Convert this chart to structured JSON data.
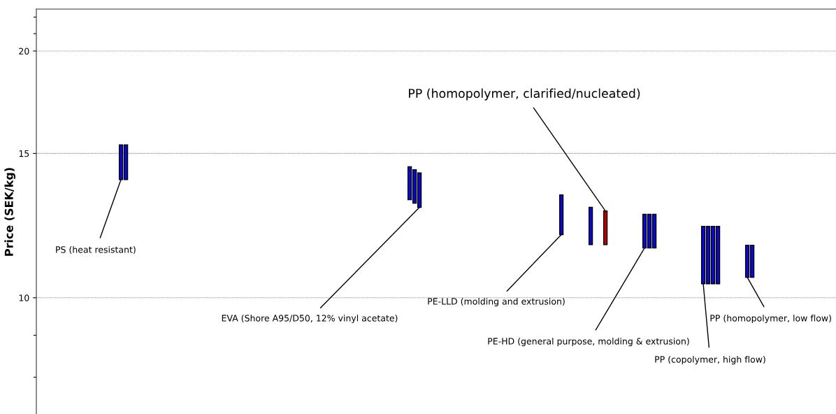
{
  "chart_data": {
    "type": "bar",
    "ylabel": "Price (SEK/kg)",
    "log": true,
    "ylim": [
      7.2,
      22.5
    ],
    "yticks": [
      {
        "value": 8,
        "label": null
      },
      {
        "value": 9,
        "label": null
      },
      10,
      15,
      20,
      {
        "value": 21,
        "label": null
      },
      {
        "value": 22,
        "label": null
      }
    ],
    "grid": "y",
    "tick_labels": "y",
    "categories": [
      null,
      null,
      null,
      null,
      null,
      null,
      null,
      null,
      null,
      null,
      null,
      null,
      null,
      null,
      null,
      null,
      null,
      null,
      null,
      null,
      null,
      null,
      null,
      null,
      null,
      null,
      null,
      null,
      null,
      null,
      null,
      null,
      null,
      null,
      null,
      null,
      null,
      null,
      null,
      null,
      null,
      null,
      null,
      null,
      null,
      null,
      null,
      null,
      null,
      null,
      null,
      null,
      null,
      null,
      null,
      null,
      null,
      null,
      null,
      null,
      null,
      null,
      null,
      null,
      null,
      null,
      null,
      null,
      null,
      null,
      null,
      null,
      null,
      null,
      null,
      null,
      null,
      null,
      null,
      null,
      null,
      null,
      null,
      null,
      null,
      null,
      null,
      null,
      null,
      null,
      null,
      null,
      null,
      null,
      null,
      null,
      null,
      null,
      null,
      null,
      null,
      null,
      null,
      null,
      null,
      null,
      null,
      null,
      null,
      null,
      null,
      null,
      null,
      null,
      null,
      null,
      null,
      null,
      null,
      null,
      null,
      null,
      null,
      null,
      null,
      null,
      null,
      null,
      null,
      null,
      null,
      null,
      null,
      null,
      null,
      null,
      null,
      null,
      null,
      null,
      null,
      null,
      null,
      null,
      null,
      null,
      null,
      null,
      null,
      null,
      null,
      null,
      null,
      null,
      null,
      null,
      null,
      null,
      null,
      null,
      null,
      null,
      null,
      null
    ],
    "series": [
      {
        "values": [
          null,
          null,
          null,
          null,
          null,
          null,
          null,
          null,
          null,
          null,
          null,
          null,
          null,
          null,
          null,
          null,
          null,
          1.42,
          1.42,
          null,
          null,
          null,
          null,
          null,
          null,
          null,
          null,
          null,
          null,
          null,
          null,
          null,
          null,
          null,
          null,
          null,
          null,
          null,
          null,
          null,
          null,
          null,
          null,
          null,
          null,
          null,
          null,
          null,
          null,
          null,
          null,
          null,
          null,
          null,
          null,
          null,
          null,
          null,
          null,
          null,
          null,
          null,
          null,
          null,
          null,
          null,
          null,
          null,
          null,
          null,
          null,
          null,
          null,
          null,
          null,
          null,
          1.28,
          1.29,
          1.31,
          null,
          null,
          null,
          null,
          null,
          null,
          null,
          null,
          null,
          null,
          null,
          null,
          null,
          null,
          null,
          null,
          null,
          null,
          null,
          null,
          null,
          null,
          null,
          null,
          null,
          null,
          null,
          null,
          1.41,
          null,
          null,
          null,
          null,
          null,
          1.28,
          null,
          null,
          1.15,
          null,
          null,
          null,
          null,
          null,
          null,
          null,
          1.14,
          1.14,
          1.14,
          null,
          null,
          null,
          null,
          null,
          null,
          null,
          null,
          null,
          1.82,
          1.82,
          1.82,
          1.82,
          null,
          null,
          null,
          null,
          null,
          1.0,
          1.0,
          null,
          null,
          null,
          null,
          null,
          null,
          null,
          null,
          null,
          null,
          null,
          null,
          null,
          null,
          null,
          null,
          null
        ],
        "base": [
          null,
          null,
          null,
          null,
          null,
          null,
          null,
          null,
          null,
          null,
          null,
          null,
          null,
          null,
          null,
          null,
          null,
          13.94,
          13.94,
          null,
          null,
          null,
          null,
          null,
          null,
          null,
          null,
          null,
          null,
          null,
          null,
          null,
          null,
          null,
          null,
          null,
          null,
          null,
          null,
          null,
          null,
          null,
          null,
          null,
          null,
          null,
          null,
          null,
          null,
          null,
          null,
          null,
          null,
          null,
          null,
          null,
          null,
          null,
          null,
          null,
          null,
          null,
          null,
          null,
          null,
          null,
          null,
          null,
          null,
          null,
          null,
          null,
          null,
          null,
          null,
          null,
          13.17,
          13.04,
          12.89,
          null,
          null,
          null,
          null,
          null,
          null,
          null,
          null,
          null,
          null,
          null,
          null,
          null,
          null,
          null,
          null,
          null,
          null,
          null,
          null,
          null,
          null,
          null,
          null,
          null,
          null,
          null,
          null,
          11.94,
          null,
          null,
          null,
          null,
          null,
          11.61,
          null,
          null,
          11.61,
          null,
          null,
          null,
          null,
          null,
          null,
          null,
          11.5,
          11.5,
          11.5,
          null,
          null,
          null,
          null,
          null,
          null,
          null,
          null,
          null,
          10.4,
          10.4,
          10.4,
          10.4,
          null,
          null,
          null,
          null,
          null,
          10.59,
          10.59,
          null,
          null,
          null,
          null,
          null,
          null,
          null,
          null,
          null,
          null,
          null,
          null,
          null,
          null,
          null,
          null,
          null
        ],
        "colors": [
          null,
          null,
          null,
          null,
          null,
          null,
          null,
          null,
          null,
          null,
          null,
          null,
          null,
          null,
          null,
          null,
          null,
          "#0a0ad2",
          "#0a0ad2",
          null,
          null,
          null,
          null,
          null,
          null,
          null,
          null,
          null,
          null,
          null,
          null,
          null,
          null,
          null,
          null,
          null,
          null,
          null,
          null,
          null,
          null,
          null,
          null,
          null,
          null,
          null,
          null,
          null,
          null,
          null,
          null,
          null,
          null,
          null,
          null,
          null,
          null,
          null,
          null,
          null,
          null,
          null,
          null,
          null,
          null,
          null,
          null,
          null,
          null,
          null,
          null,
          null,
          null,
          null,
          null,
          null,
          "#0a0ad2",
          "#0a0ad2",
          "#0a0ad2",
          null,
          null,
          null,
          null,
          null,
          null,
          null,
          null,
          null,
          null,
          null,
          null,
          null,
          null,
          null,
          null,
          null,
          null,
          null,
          null,
          null,
          null,
          null,
          null,
          null,
          null,
          null,
          null,
          "#0a0ad2",
          null,
          null,
          null,
          null,
          null,
          "#0a0ad2",
          null,
          null,
          "#c00000",
          null,
          null,
          null,
          null,
          null,
          null,
          null,
          "#0a0ad2",
          "#0a0ad2",
          "#0a0ad2",
          null,
          null,
          null,
          null,
          null,
          null,
          null,
          null,
          null,
          "#0a0ad2",
          "#0a0ad2",
          "#0a0ad2",
          "#0a0ad2",
          null,
          null,
          null,
          null,
          null,
          "#0a0ad2",
          "#0a0ad2",
          null,
          null,
          null,
          null,
          null,
          null,
          null,
          null,
          null,
          null,
          null,
          null,
          null,
          null,
          null,
          null,
          null
        ]
      }
    ],
    "annotations": [
      "PS (heat resistant)",
      "EVA (Shore A95/D50, 12% vinyl acetate)",
      "PE-LLD (molding and extrusion)",
      "PP (homopolymer, clarified/nucleated)",
      "PE-HD (general purpose, molding & extrusion)",
      "PP (copolymer, high flow)",
      "PP (homopolymer, low flow)"
    ]
  }
}
